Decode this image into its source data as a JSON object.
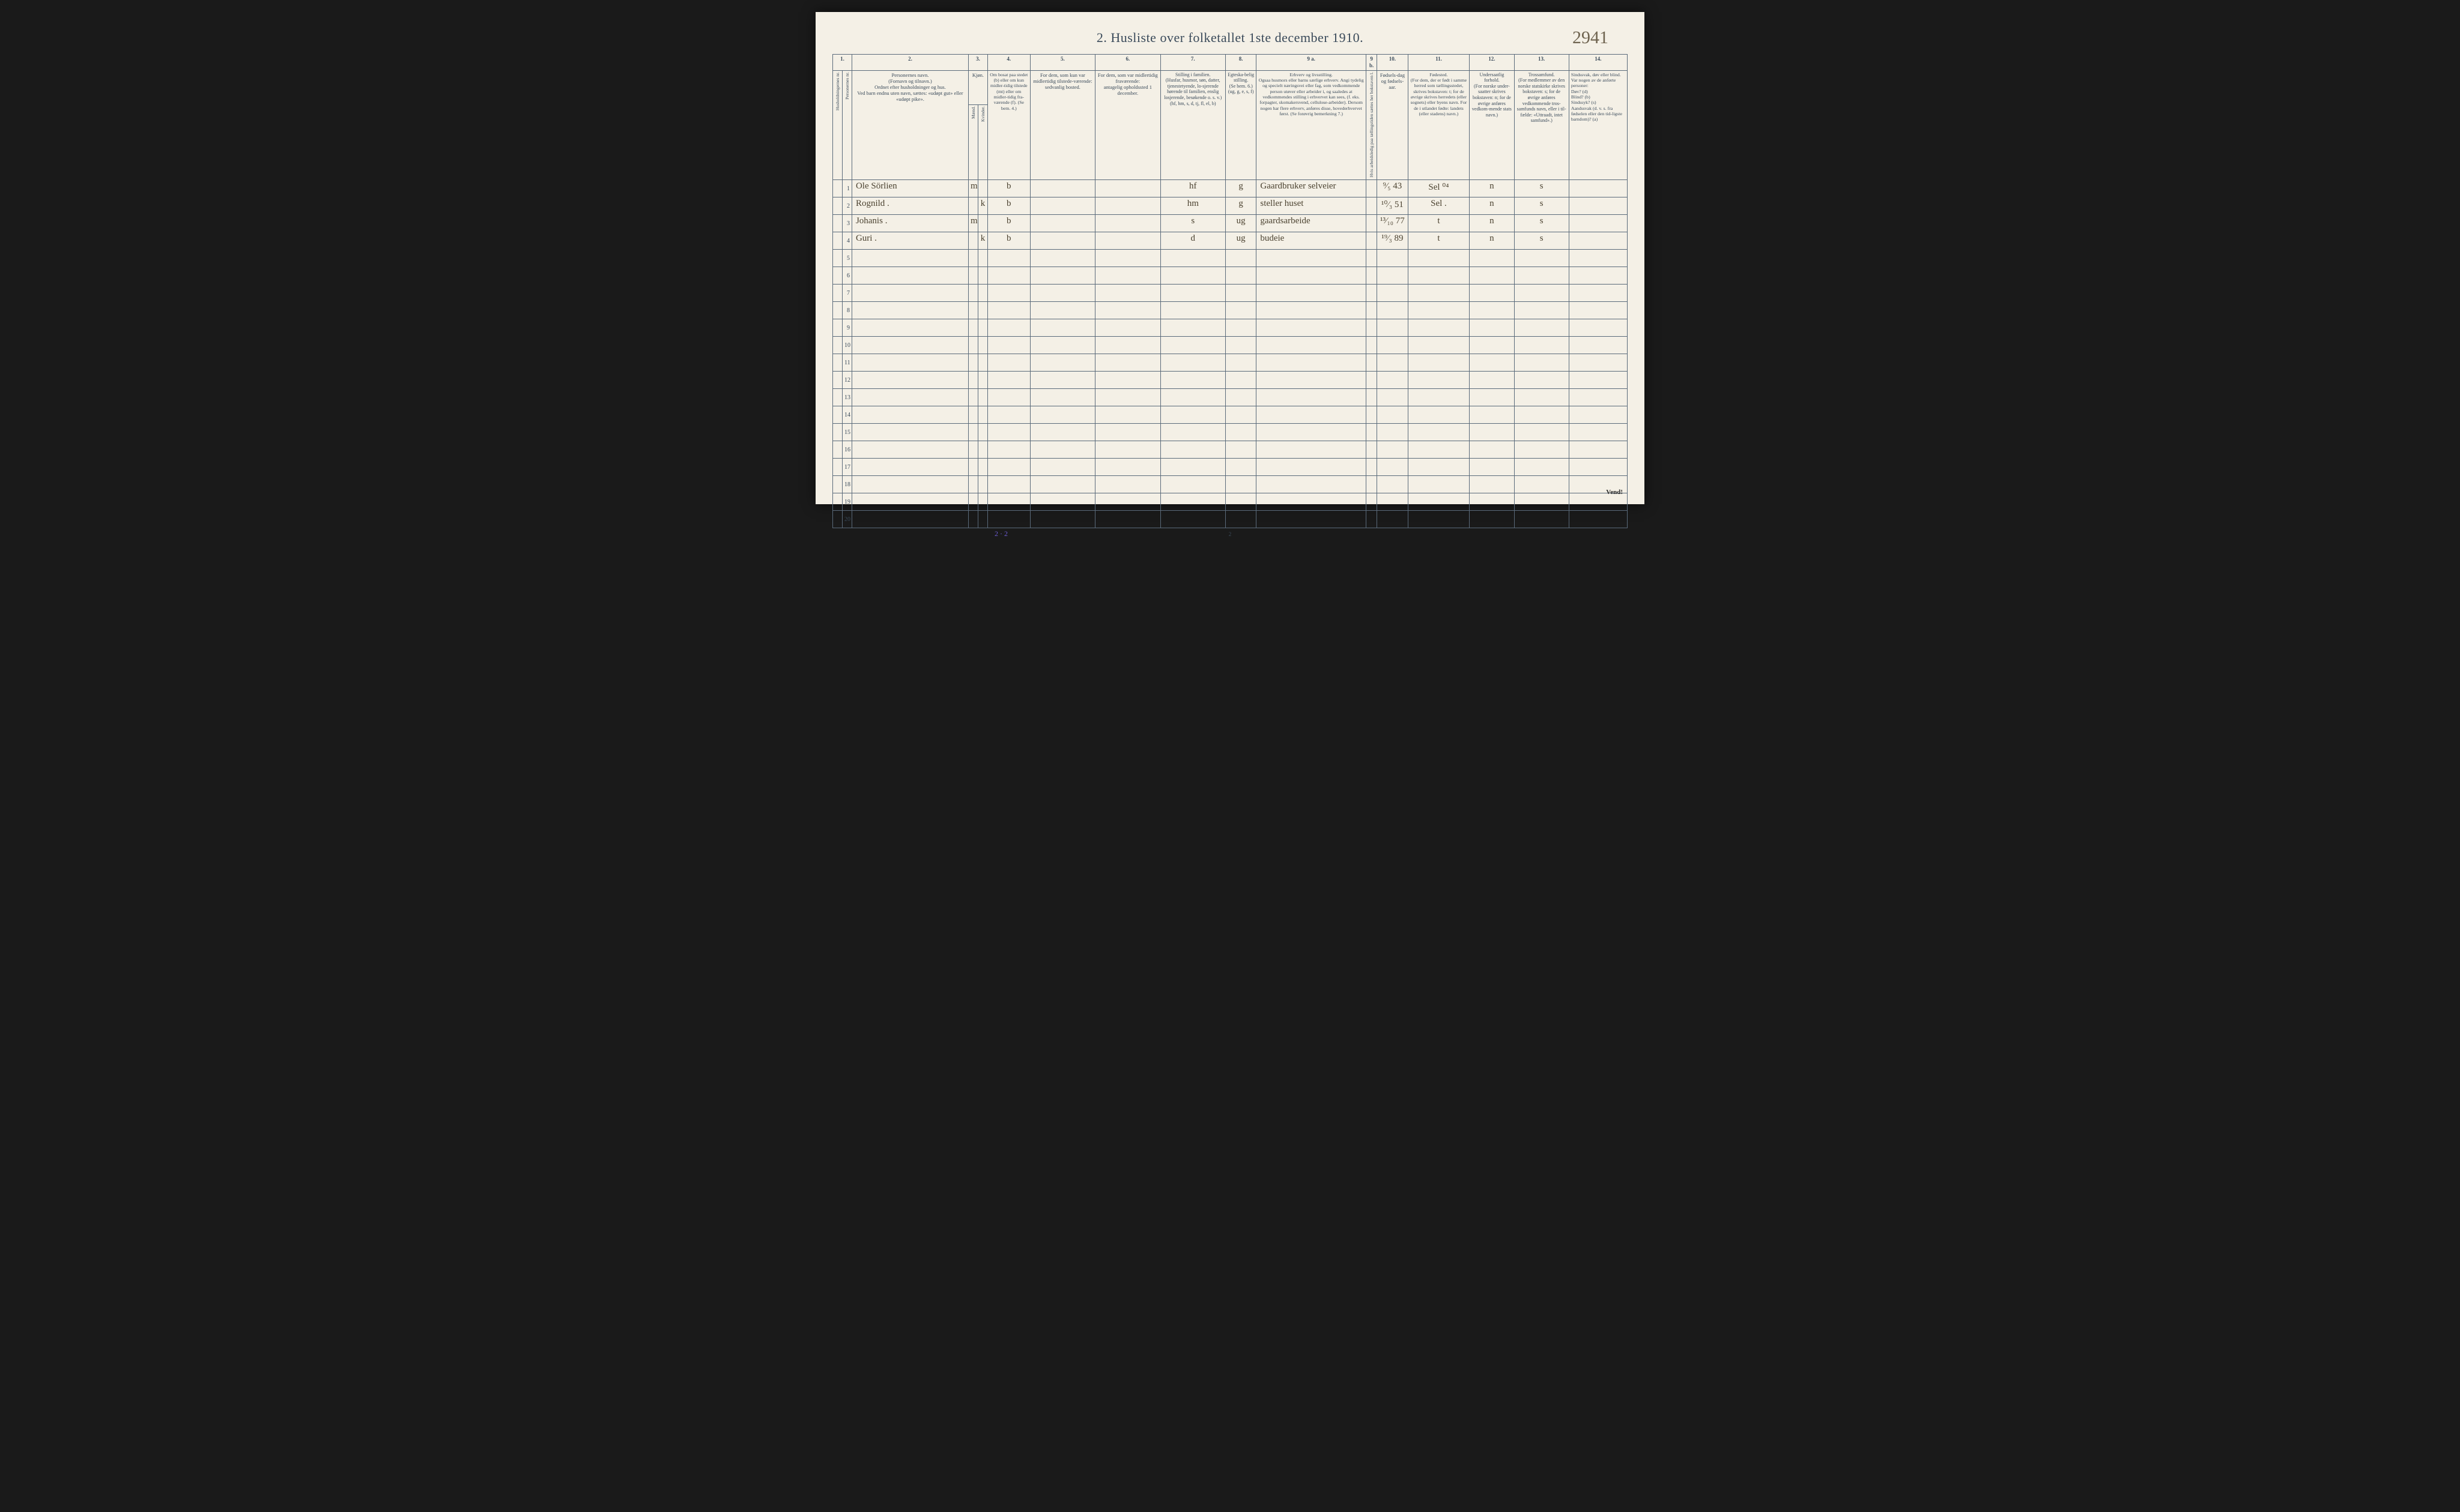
{
  "page_number_handwritten": "2941",
  "title": "2.  Husliste over folketallet 1ste december 1910.",
  "column_numbers": [
    "1.",
    "2.",
    "3.",
    "4.",
    "5.",
    "6.",
    "7.",
    "8.",
    "9 a.",
    "9 b.",
    "10.",
    "11.",
    "12.",
    "13.",
    "14."
  ],
  "headers": {
    "hush_nr": "Husholdningernes nr.",
    "pers_nr": "Personernes nr.",
    "navn": "Personernes navn.\n(Fornavn og tilnavn.)\nOrdnet efter husholdninger og hus.\nVed barn endnu uten navn, sættes: «udøpt gut» eller «udøpt pike».",
    "kjon": "Kjøn.",
    "kjon_m": "Mænd.",
    "kjon_k": "Kvinder.",
    "bosat": "Om bosat paa stedet (b) eller om kun midler-tidig tilstede (mt) eller om midler-tidig fra-værende (f). (Se bem. 4.)",
    "tilstede": "For dem, som kun var midlertidig tilstede-værende:\nsedvanlig bosted.",
    "fravar": "For dem, som var midlertidig fraværende:\nantagelig opholdssted 1 december.",
    "stilling_fam": "Stilling i familien.\n(Husfar, husmor, søn, datter, tjenestetyende, lo-sjerende hørende til familien, enslig losjerende, besøkende o. s. v.)\n(hf, hm, s, d, tj, fl, el, b)",
    "egte": "Egteska-belig stilling.\n(Se bem. 6.)\n(ug, g, e, s, f)",
    "erhverv": "Erhverv og livsstilling.\nOgsaa husmors eller barns særlige erhverv. Angi tydelig og specielt næringsvei eller fag, som vedkommende person utøver eller arbeider i, og saaledes at vedkommendes stilling i erhvervet kan sees, (f. eks. forpagter, skomakersvend, cellulose-arbeider). Dersom nogen har flere erhverv, anføres disse, hovederhvervet først. (Se forøvrig bemerkning 7.)",
    "arbledig": "Hvis arbeidsledig paa tællingstiden sættes her bokstaven l.",
    "fodselsdag": "Fødsels-dag og fødsels-aar.",
    "fodested": "Fødested.\n(For dem, der er født i samme herred som tællingsstedet, skrives bokstaven: t; for de øvrige skrives herredets (eller sognets) eller byens navn. For de i utlandet fødte: landets (eller stadens) navn.)",
    "undersaat": "Undersaatlig forhold.\n(For norske under-saatter skrives bokstaven: n; for de øvrige anføres vedkom-mende stats navn.)",
    "tros": "Trossamfund.\n(For medlemmer av den norske statskirke skrives bokstaven: s; for de øvrige anføres vedkommende tros-samfunds navn, eller i til-fælde: «Uttraadt, intet samfund».)",
    "sind": "Sindssvak, døv eller blind.\nVar nogen av de anførte personer:\nDøv?        (d)\nBlind?       (b)\nSindssyk?  (s)\nAandssvak (d. v. s. fra fødselen eller den tid-ligste barndom)?  (a)"
  },
  "rows": [
    {
      "n": "1",
      "name": "Ole Sörlien",
      "m": "m",
      "k": "",
      "b": "b",
      "fam": "hf",
      "eg": "g",
      "erhv": "Gaardbruker selveier",
      "fd": "⁹⁄₅ 43",
      "fs": "Sel ⁰⁴",
      "u": "n",
      "t": "s"
    },
    {
      "n": "2",
      "name": "Rognild  .",
      "m": "",
      "k": "k",
      "b": "b",
      "fam": "hm",
      "eg": "g",
      "erhv": "steller huset",
      "fd": "¹⁰⁄₃ 51",
      "fs": "Sel .",
      "u": "n",
      "t": "s"
    },
    {
      "n": "3",
      "name": "Johanis .",
      "m": "m",
      "k": "",
      "b": "b",
      "fam": "s",
      "eg": "ug",
      "erhv": "gaardsarbeide",
      "fd": "¹³⁄₁₀ 77",
      "fs": "t",
      "u": "n",
      "t": "s"
    },
    {
      "n": "4",
      "name": "Guri    .",
      "m": "",
      "k": "k",
      "b": "b",
      "fam": "d",
      "eg": "ug",
      "erhv": "budeie",
      "fd": "¹⁹⁄₃ 89",
      "fs": "t",
      "u": "n",
      "t": "s"
    }
  ],
  "blank_row_count": 16,
  "footer_sum": "2 · 2",
  "page_print_number": "2",
  "vend": "Vend!"
}
